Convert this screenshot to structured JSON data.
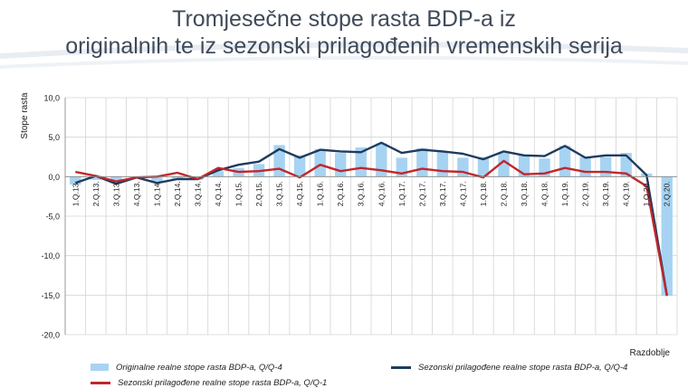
{
  "page": {
    "title_line1": "Tromjesečne stope rasta BDP-a iz",
    "title_line2": "originalnih te iz sezonski prilagođenih vremenskih serija"
  },
  "colors": {
    "bars": "#a7d3f2",
    "line_sa": "#1f3b5e",
    "line_sa_qq1": "#c0272d",
    "title": "#3f4a5a"
  },
  "chart_data": {
    "type": "bar",
    "title": "",
    "xlabel": "Razdoblje",
    "ylabel": "Stope rasta",
    "ylim": [
      -20,
      10
    ],
    "yticks": [
      10,
      5,
      0,
      -5,
      -10,
      -15,
      -20
    ],
    "ytick_labels": [
      "10,0",
      "5,0",
      "0,0",
      "-5,0",
      "-10,0",
      "-15,0",
      "-20,0"
    ],
    "grid": true,
    "legend_position": "bottom",
    "categories": [
      "1.Q.13.",
      "2.Q.13.",
      "3.Q.13.",
      "4.Q.13.",
      "1.Q.14.",
      "2.Q.14.",
      "3.Q.14.",
      "4.Q.14.",
      "1.Q.15.",
      "2.Q.15.",
      "3.Q.15.",
      "4.Q.15.",
      "1.Q.16.",
      "2.Q.16.",
      "3.Q.16.",
      "4.Q.16.",
      "1.Q.17.",
      "2.Q.17.",
      "3.Q.17.",
      "4.Q.17.",
      "1.Q.18.",
      "2.Q.18.",
      "3.Q.18.",
      "4.Q.18.",
      "1.Q.19.",
      "2.Q.19.",
      "3.Q.19.",
      "4.Q.19.",
      "1.Q.20.",
      "2.Q.20."
    ],
    "series": [
      {
        "name": "Originalne realne stope rasta BDP-a, Q/Q-4",
        "kind": "bar",
        "values": [
          -1.0,
          -0.4,
          -0.7,
          -0.2,
          -0.6,
          -0.4,
          -0.4,
          0.7,
          1.1,
          1.6,
          4.0,
          2.7,
          3.5,
          3.0,
          3.7,
          4.2,
          2.4,
          3.6,
          3.1,
          2.4,
          2.5,
          3.0,
          2.8,
          2.3,
          3.9,
          2.5,
          2.5,
          3.0,
          0.4,
          -15.1
        ]
      },
      {
        "name": "Sezonski prilagođene realne stope rasta BDP-a, Q/Q-4",
        "kind": "line",
        "values": [
          -0.8,
          0.1,
          -0.9,
          -0.1,
          -0.8,
          -0.3,
          -0.3,
          0.8,
          1.5,
          1.9,
          3.5,
          2.4,
          3.4,
          3.2,
          3.1,
          4.3,
          3.0,
          3.4,
          3.2,
          2.9,
          2.2,
          3.2,
          2.7,
          2.6,
          3.9,
          2.4,
          2.7,
          2.7,
          0.2,
          -15.0
        ]
      },
      {
        "name": "Sezonski prilagođene realne stope rasta BDP-a, Q/Q-1",
        "kind": "line",
        "values": [
          0.6,
          0.1,
          -0.6,
          -0.1,
          0.0,
          0.5,
          -0.3,
          1.1,
          0.6,
          0.7,
          1.0,
          -0.1,
          1.5,
          0.7,
          1.1,
          0.8,
          0.4,
          1.0,
          0.7,
          0.6,
          -0.1,
          2.0,
          0.3,
          0.4,
          1.1,
          0.6,
          0.6,
          0.4,
          -1.2,
          -15.1
        ]
      }
    ]
  }
}
